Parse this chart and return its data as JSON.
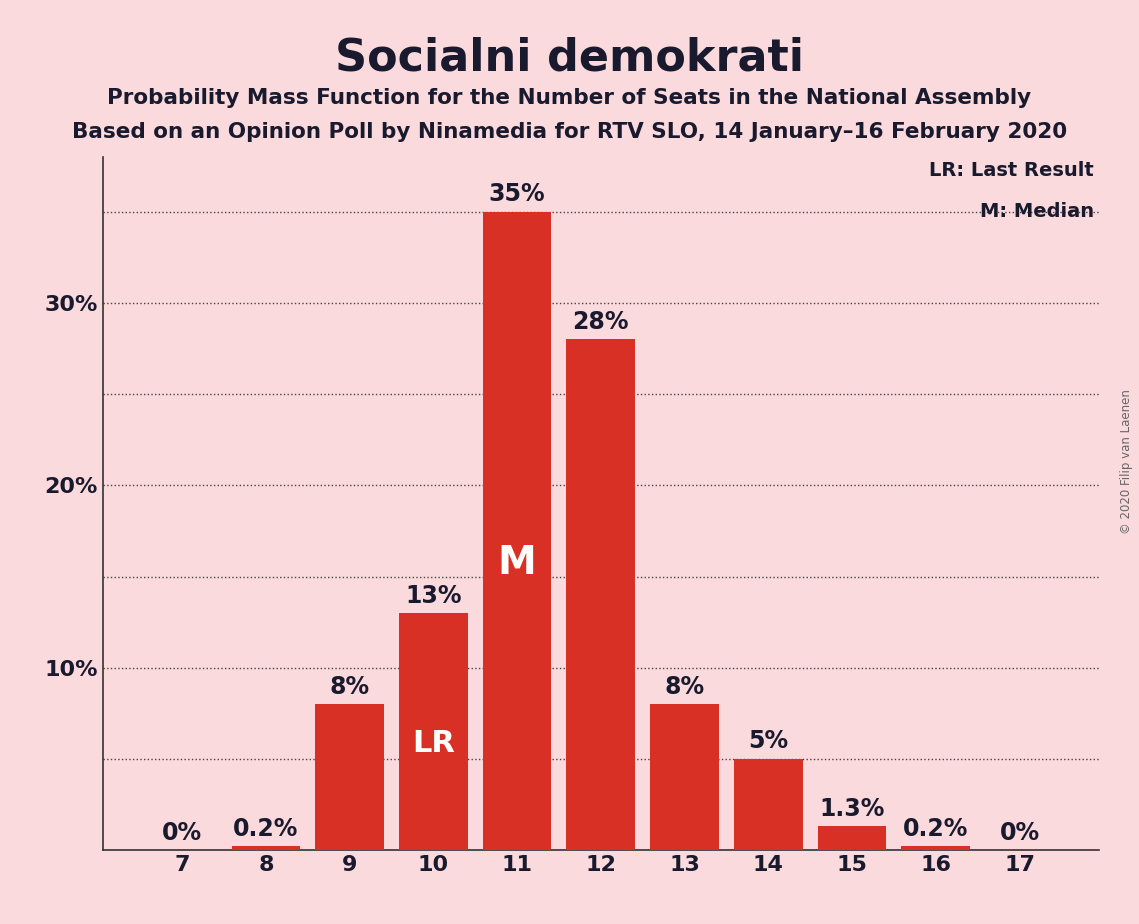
{
  "title": "Socialni demokrati",
  "subtitle1": "Probability Mass Function for the Number of Seats in the National Assembly",
  "subtitle2": "Based on an Opinion Poll by Ninamedia for RTV SLO, 14 January–16 February 2020",
  "copyright": "© 2020 Filip van Laenen",
  "seats": [
    7,
    8,
    9,
    10,
    11,
    12,
    13,
    14,
    15,
    16,
    17
  ],
  "probabilities": [
    0.0,
    0.2,
    8.0,
    13.0,
    35.0,
    28.0,
    8.0,
    5.0,
    1.3,
    0.2,
    0.0
  ],
  "bar_color": "#d93025",
  "background_color": "#fadadd",
  "label_color_dark": "#1a1a2e",
  "label_color_white": "#ffffff",
  "median_seat": 11,
  "lr_seat": 10,
  "grid_ticks": [
    5,
    10,
    15,
    20,
    25,
    30,
    35
  ],
  "ytick_positions": [
    10,
    20,
    30
  ],
  "ytick_labels": [
    "10%",
    "20%",
    "30%"
  ],
  "ylim": [
    0,
    38
  ],
  "legend_lr": "LR: Last Result",
  "legend_m": "M: Median",
  "title_fontsize": 32,
  "subtitle_fontsize": 15.5,
  "bar_label_fontsize": 17,
  "inside_label_fontsize_M": 28,
  "inside_label_fontsize_LR": 22,
  "ytick_fontsize": 16,
  "xtick_fontsize": 16,
  "legend_fontsize": 14
}
